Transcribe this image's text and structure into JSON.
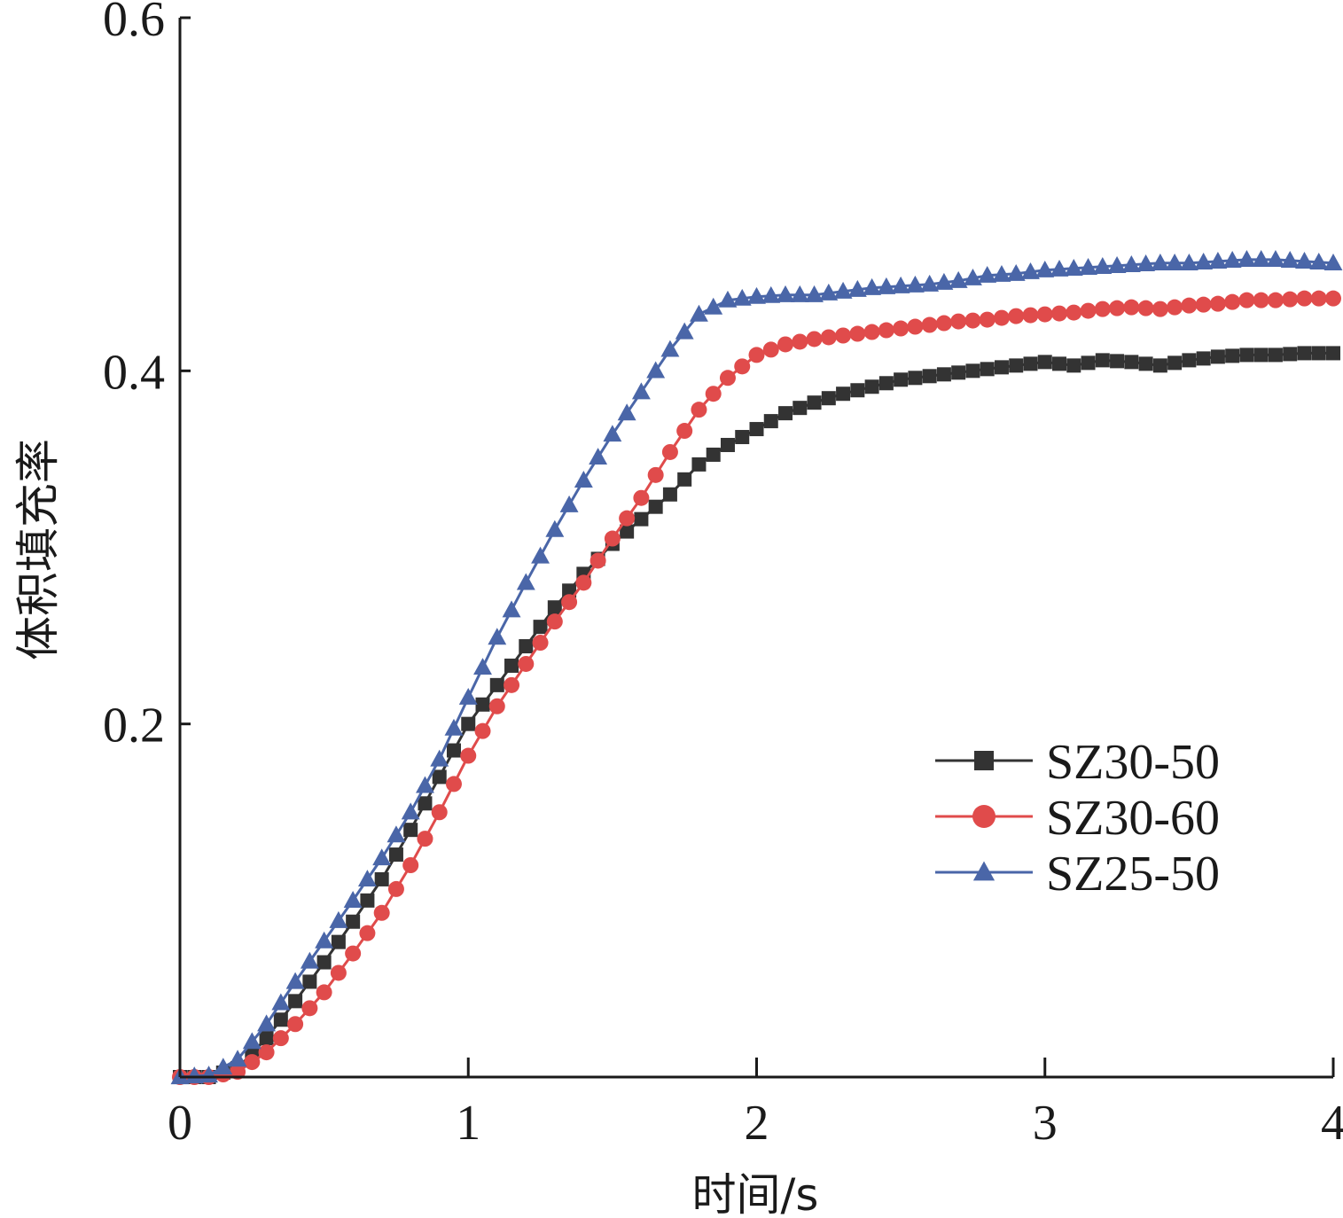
{
  "chart_data": {
    "type": "line",
    "title": "",
    "xlabel": "时间/s",
    "ylabel": "体积填充率",
    "xlim": [
      0,
      4
    ],
    "ylim": [
      0,
      0.6
    ],
    "x_ticks": [
      "0",
      "1",
      "2",
      "3",
      "4"
    ],
    "y_ticks": [
      "0.2",
      "0.4",
      "0.6"
    ],
    "grid": false,
    "legend_position": "right-middle",
    "series": [
      {
        "name": "SZ30-50",
        "color": "#333333",
        "marker": "square",
        "points": [
          [
            0,
            0
          ],
          [
            0.1,
            0
          ],
          [
            0.2,
            0.005
          ],
          [
            0.3,
            0.022
          ],
          [
            0.4,
            0.043
          ],
          [
            0.5,
            0.065
          ],
          [
            0.6,
            0.088
          ],
          [
            0.7,
            0.112
          ],
          [
            0.8,
            0.14
          ],
          [
            0.9,
            0.17
          ],
          [
            1.0,
            0.2
          ],
          [
            1.1,
            0.222
          ],
          [
            1.2,
            0.244
          ],
          [
            1.3,
            0.266
          ],
          [
            1.4,
            0.285
          ],
          [
            1.5,
            0.302
          ],
          [
            1.6,
            0.316
          ],
          [
            1.7,
            0.33
          ],
          [
            1.8,
            0.347
          ],
          [
            1.9,
            0.358
          ],
          [
            2.0,
            0.367
          ],
          [
            2.1,
            0.376
          ],
          [
            2.2,
            0.382
          ],
          [
            2.3,
            0.387
          ],
          [
            2.4,
            0.391
          ],
          [
            2.5,
            0.395
          ],
          [
            2.6,
            0.397
          ],
          [
            2.7,
            0.399
          ],
          [
            2.8,
            0.401
          ],
          [
            2.9,
            0.403
          ],
          [
            3.0,
            0.405
          ],
          [
            3.1,
            0.403
          ],
          [
            3.2,
            0.406
          ],
          [
            3.3,
            0.405
          ],
          [
            3.4,
            0.403
          ],
          [
            3.5,
            0.406
          ],
          [
            3.6,
            0.408
          ],
          [
            3.7,
            0.409
          ],
          [
            3.8,
            0.409
          ],
          [
            3.9,
            0.41
          ],
          [
            4.0,
            0.41
          ]
        ]
      },
      {
        "name": "SZ30-60",
        "color": "#e04b4b",
        "marker": "circle",
        "points": [
          [
            0,
            0
          ],
          [
            0.1,
            0
          ],
          [
            0.2,
            0.003
          ],
          [
            0.3,
            0.014
          ],
          [
            0.4,
            0.03
          ],
          [
            0.5,
            0.048
          ],
          [
            0.6,
            0.07
          ],
          [
            0.7,
            0.093
          ],
          [
            0.8,
            0.12
          ],
          [
            0.9,
            0.15
          ],
          [
            1.0,
            0.182
          ],
          [
            1.1,
            0.21
          ],
          [
            1.2,
            0.234
          ],
          [
            1.3,
            0.258
          ],
          [
            1.4,
            0.28
          ],
          [
            1.5,
            0.305
          ],
          [
            1.6,
            0.328
          ],
          [
            1.7,
            0.354
          ],
          [
            1.8,
            0.378
          ],
          [
            1.9,
            0.396
          ],
          [
            2.0,
            0.409
          ],
          [
            2.1,
            0.415
          ],
          [
            2.2,
            0.418
          ],
          [
            2.3,
            0.42
          ],
          [
            2.4,
            0.422
          ],
          [
            2.5,
            0.424
          ],
          [
            2.6,
            0.426
          ],
          [
            2.7,
            0.428
          ],
          [
            2.8,
            0.429
          ],
          [
            2.9,
            0.431
          ],
          [
            3.0,
            0.432
          ],
          [
            3.1,
            0.433
          ],
          [
            3.2,
            0.435
          ],
          [
            3.3,
            0.436
          ],
          [
            3.4,
            0.435
          ],
          [
            3.5,
            0.437
          ],
          [
            3.6,
            0.438
          ],
          [
            3.7,
            0.44
          ],
          [
            3.8,
            0.44
          ],
          [
            3.9,
            0.441
          ],
          [
            4.0,
            0.441
          ]
        ]
      },
      {
        "name": "SZ25-50",
        "color": "#4a66a8",
        "marker": "triangle",
        "points": [
          [
            0,
            0
          ],
          [
            0.1,
            0.001
          ],
          [
            0.2,
            0.01
          ],
          [
            0.3,
            0.03
          ],
          [
            0.4,
            0.054
          ],
          [
            0.5,
            0.077
          ],
          [
            0.6,
            0.1
          ],
          [
            0.7,
            0.124
          ],
          [
            0.8,
            0.15
          ],
          [
            0.9,
            0.18
          ],
          [
            1.0,
            0.215
          ],
          [
            1.1,
            0.249
          ],
          [
            1.2,
            0.28
          ],
          [
            1.3,
            0.31
          ],
          [
            1.4,
            0.338
          ],
          [
            1.5,
            0.364
          ],
          [
            1.6,
            0.388
          ],
          [
            1.7,
            0.412
          ],
          [
            1.8,
            0.432
          ],
          [
            1.9,
            0.44
          ],
          [
            2.0,
            0.442
          ],
          [
            2.1,
            0.443
          ],
          [
            2.2,
            0.443
          ],
          [
            2.3,
            0.445
          ],
          [
            2.4,
            0.447
          ],
          [
            2.5,
            0.448
          ],
          [
            2.6,
            0.449
          ],
          [
            2.7,
            0.451
          ],
          [
            2.8,
            0.454
          ],
          [
            2.9,
            0.455
          ],
          [
            3.0,
            0.457
          ],
          [
            3.1,
            0.458
          ],
          [
            3.2,
            0.459
          ],
          [
            3.3,
            0.46
          ],
          [
            3.4,
            0.461
          ],
          [
            3.5,
            0.461
          ],
          [
            3.6,
            0.462
          ],
          [
            3.7,
            0.463
          ],
          [
            3.8,
            0.463
          ],
          [
            3.9,
            0.462
          ],
          [
            4.0,
            0.461
          ]
        ]
      }
    ]
  }
}
